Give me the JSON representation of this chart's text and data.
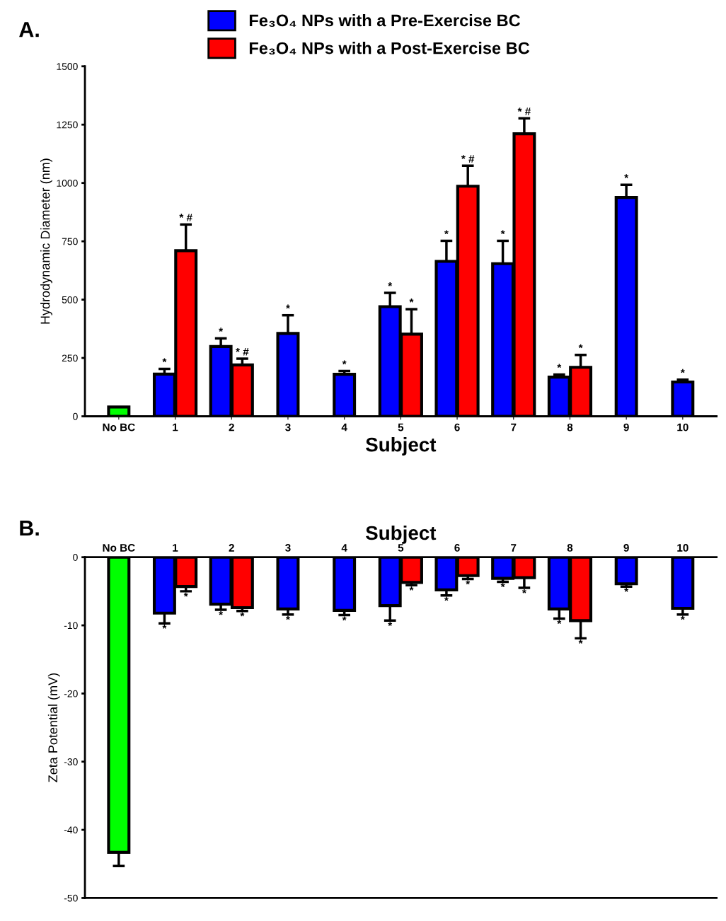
{
  "chart_data": [
    {
      "type": "bar",
      "title": "A.",
      "xlabel": "Subject",
      "ylabel": "Hydrodynamic Diameter (nm)",
      "categories": [
        "No BC",
        "1",
        "2",
        "3",
        "4",
        "5",
        "6",
        "7",
        "8",
        "9",
        "10"
      ],
      "series": [
        {
          "color": "#00ff00",
          "values": [
            40,
            null,
            null,
            null,
            null,
            null,
            null,
            null,
            null,
            null,
            null
          ]
        },
        {
          "name": "Fe₃O₄ NPs with a Pre-Exercise BC",
          "color": "#0000ff",
          "values": [
            null,
            181,
            299,
            355,
            180,
            470,
            664,
            654,
            168,
            938,
            147
          ],
          "errors": [
            null,
            22,
            35,
            78,
            14,
            59,
            88,
            98,
            11,
            54,
            10
          ],
          "value_labels": [
            null,
            "*",
            "*",
            "*",
            "*",
            "*",
            "*",
            "*",
            "*",
            "*",
            "*"
          ]
        },
        {
          "name": "Fe₃O₄ NPs with a Post-Exercise BC",
          "color": "#ff0000",
          "values": [
            null,
            710,
            220,
            null,
            null,
            352,
            986,
            1211,
            210,
            null,
            null
          ],
          "errors": [
            null,
            112,
            27,
            null,
            null,
            107,
            88,
            66,
            53,
            null,
            null
          ],
          "value_labels": [
            null,
            "* #",
            "* #",
            null,
            null,
            "*",
            "* #",
            "* #",
            "*",
            null,
            null
          ]
        }
      ],
      "ylim": [
        0,
        1500
      ],
      "yticks": [
        0,
        250,
        500,
        750,
        1000,
        1250,
        1500
      ],
      "legend": "top",
      "grid": false
    },
    {
      "type": "bar",
      "title": "B.",
      "xlabel": "Subject",
      "ylabel": "Zeta Potential (mV)",
      "categories": [
        "No BC",
        "1",
        "2",
        "3",
        "4",
        "5",
        "6",
        "7",
        "8",
        "9",
        "10"
      ],
      "series": [
        {
          "color": "#00ff00",
          "values": [
            -43.3,
            null,
            null,
            null,
            null,
            null,
            null,
            null,
            null,
            null,
            null
          ],
          "errors": [
            2,
            null,
            null,
            null,
            null,
            null,
            null,
            null,
            null,
            null,
            null
          ]
        },
        {
          "color": "#0000ff",
          "values": [
            null,
            -8.2,
            -6.9,
            -7.6,
            -7.8,
            -7.1,
            -4.8,
            -3.1,
            -7.6,
            -3.9,
            -7.5
          ],
          "errors": [
            null,
            1.5,
            0.8,
            0.8,
            0.7,
            2.2,
            0.8,
            0.5,
            1.4,
            0.4,
            0.9
          ],
          "value_labels": [
            null,
            "*",
            "*",
            "*",
            "*",
            "*",
            "*",
            "*",
            "*",
            "*",
            "*"
          ]
        },
        {
          "color": "#ff0000",
          "values": [
            null,
            -4.3,
            -7.4,
            null,
            null,
            -3.7,
            -2.7,
            -3.0,
            -9.3,
            null,
            null
          ],
          "errors": [
            null,
            0.7,
            0.5,
            null,
            null,
            0.4,
            0.5,
            1.5,
            2.6,
            null,
            null
          ],
          "value_labels": [
            null,
            "*",
            "*",
            null,
            null,
            "*",
            "*",
            "*",
            "*",
            null,
            null
          ]
        }
      ],
      "ylim": [
        -50,
        0
      ],
      "yticks": [
        0,
        -10,
        -20,
        -30,
        -40,
        -50
      ],
      "legend": false,
      "grid": false
    }
  ]
}
